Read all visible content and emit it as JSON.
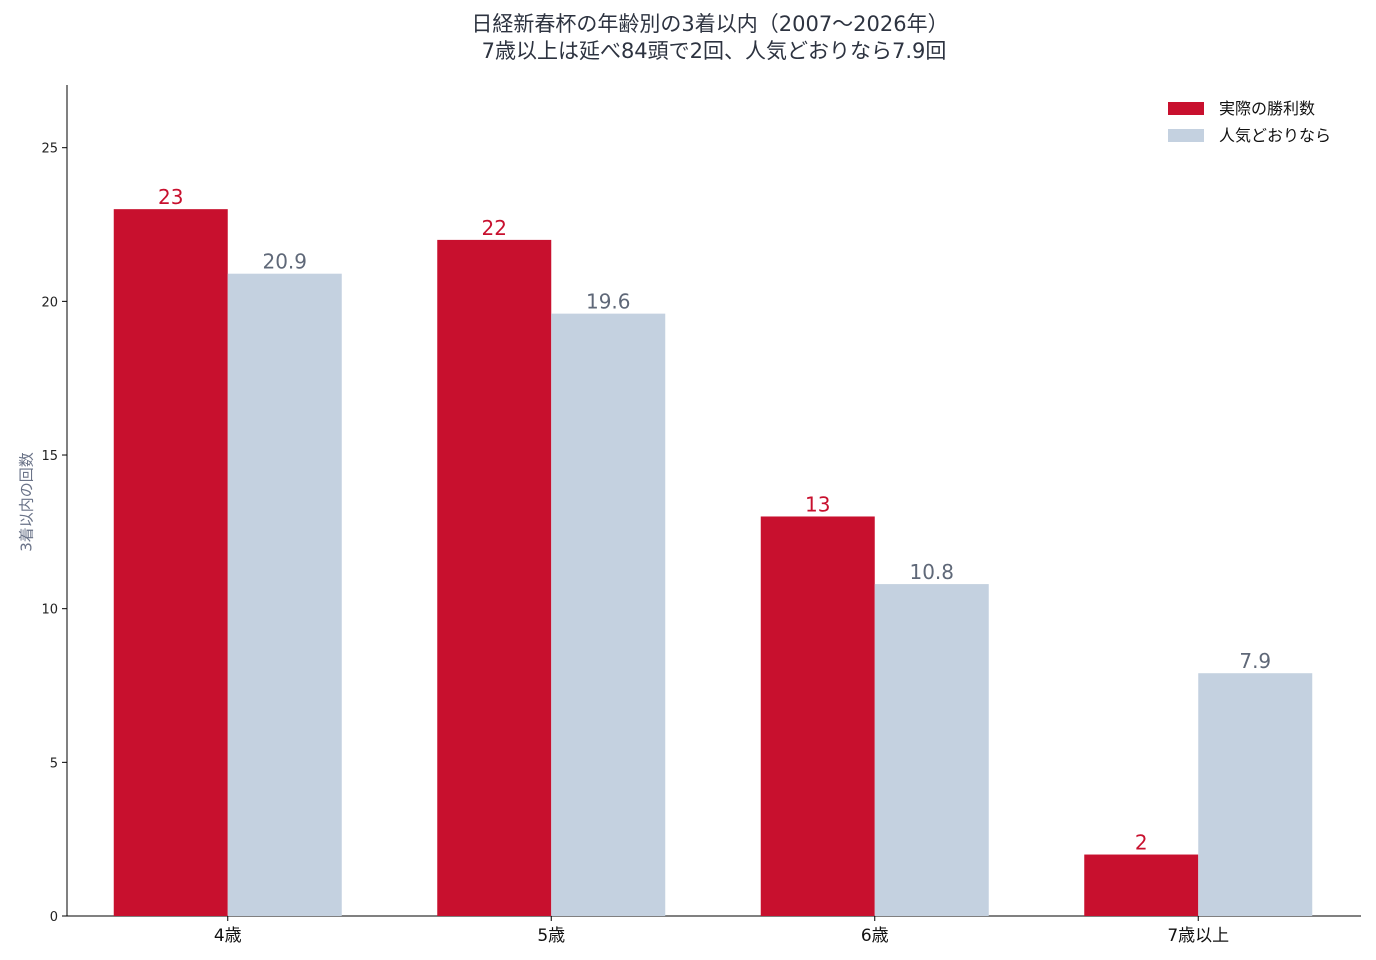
{
  "chart_data": {
    "type": "bar",
    "title_line1": "日経新春杯の年齢別の3着以内（2007〜2026年）",
    "title_line2": "7歳以上は延べ84頭で2回、人気どおりなら7.9回",
    "xlabel": "",
    "ylabel": "3着以内の回数",
    "categories": [
      "4歳",
      "5歳",
      "6歳",
      "7歳以上"
    ],
    "series": [
      {
        "name": "実際の勝利数",
        "values": [
          23,
          22,
          13,
          2
        ],
        "labels": [
          "23",
          "22",
          "13",
          "2"
        ],
        "color": "#c8102e"
      },
      {
        "name": "人気どおりなら",
        "values": [
          20.9,
          19.6,
          10.8,
          7.9
        ],
        "labels": [
          "20.9",
          "19.6",
          "10.8",
          "7.9"
        ],
        "color": "#c4d1e0"
      }
    ],
    "ylim": [
      0,
      27.04
    ],
    "yticks": [
      0,
      5,
      10,
      15,
      20,
      25
    ],
    "ytick_labels": [
      "0",
      "5",
      "10",
      "15",
      "20",
      "25"
    ],
    "grid": false,
    "legend_position": "top-right",
    "label_colors": [
      "#c8102e",
      "#5f6878"
    ]
  }
}
